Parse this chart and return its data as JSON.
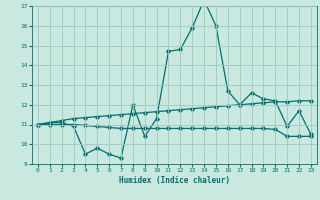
{
  "title": "",
  "xlabel": "Humidex (Indice chaleur)",
  "ylabel": "",
  "xlim": [
    -0.5,
    23.5
  ],
  "ylim": [
    9,
    17
  ],
  "yticks": [
    9,
    10,
    11,
    12,
    13,
    14,
    15,
    16,
    17
  ],
  "xticks": [
    0,
    1,
    2,
    3,
    4,
    5,
    6,
    7,
    8,
    9,
    10,
    11,
    12,
    13,
    14,
    15,
    16,
    17,
    18,
    19,
    20,
    21,
    22,
    23
  ],
  "bg_color": "#c8e8e0",
  "line_color": "#007070",
  "grid_color": "#a0c8c0",
  "line1_x": [
    0,
    1,
    2,
    3,
    4,
    5,
    6,
    7,
    8,
    9,
    10,
    11,
    12,
    13,
    14,
    15,
    16,
    17,
    18,
    19,
    20,
    21,
    22,
    23
  ],
  "line1_y": [
    11.0,
    11.1,
    11.1,
    10.9,
    9.5,
    9.8,
    9.5,
    9.3,
    12.0,
    10.4,
    11.3,
    14.7,
    14.8,
    15.9,
    17.3,
    16.0,
    12.7,
    12.0,
    12.6,
    12.3,
    12.2,
    10.9,
    11.7,
    10.5
  ],
  "line2_x": [
    0,
    1,
    2,
    3,
    4,
    5,
    6,
    7,
    8,
    9,
    10,
    11,
    12,
    13,
    14,
    15,
    16,
    17,
    18,
    19,
    20,
    21,
    22,
    23
  ],
  "line2_y": [
    11.0,
    11.1,
    11.2,
    11.3,
    11.35,
    11.4,
    11.45,
    11.5,
    11.55,
    11.6,
    11.65,
    11.7,
    11.75,
    11.8,
    11.85,
    11.9,
    11.95,
    12.0,
    12.05,
    12.1,
    12.15,
    12.15,
    12.2,
    12.2
  ],
  "line3_x": [
    0,
    1,
    2,
    3,
    4,
    5,
    6,
    7,
    8,
    9,
    10,
    11,
    12,
    13,
    14,
    15,
    16,
    17,
    18,
    19,
    20,
    21,
    22,
    23
  ],
  "line3_y": [
    11.0,
    11.0,
    11.0,
    11.0,
    10.95,
    10.9,
    10.85,
    10.8,
    10.8,
    10.8,
    10.8,
    10.8,
    10.8,
    10.8,
    10.8,
    10.8,
    10.8,
    10.8,
    10.8,
    10.8,
    10.75,
    10.4,
    10.4,
    10.4
  ]
}
